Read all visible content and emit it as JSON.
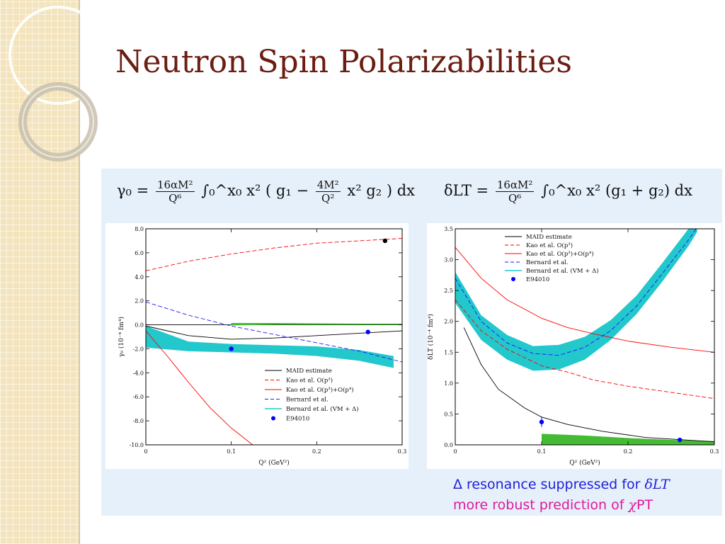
{
  "slide": {
    "title": "Neutron Spin Polarizabilities"
  },
  "formulas": {
    "left": {
      "lhs": "γ₀ =",
      "num": "16αM²",
      "den": "Q⁶",
      "body": "∫₀^x₀ x² ( g₁ −",
      "num2": "4M²",
      "den2": "Q²",
      "tail": "x² g₂ ) dx"
    },
    "right": {
      "lhs": "δLT =",
      "num": "16αM²",
      "den": "Q⁶",
      "body": "∫₀^x₀ x² (g₁ + g₂) dx"
    }
  },
  "notes": {
    "line1_text": "Δ resonance suppressed for ",
    "line1_symbol": "δLT",
    "line2_text": "more robust prediction of ",
    "line2_symbol": "χ",
    "line2_tail": "PT"
  },
  "colors": {
    "maid": "#000000",
    "kao_p3": "#ff0000",
    "kao_p3p4": "#ff0000",
    "bernard": "#1a1aff",
    "bernard_vm": "#22c8cc",
    "e94010": "#0000ff",
    "green_band": "#44bb33",
    "title": "#6b1d12"
  },
  "chart_data": [
    {
      "type": "line",
      "xlabel": "Q² (GeV²)",
      "ylabel": "γ₀ (10⁻⁴ fm⁴)",
      "xlim": [
        0,
        0.3
      ],
      "ylim": [
        -10,
        8
      ],
      "xticks": [
        "0",
        "0.1",
        "0.2",
        "0.3"
      ],
      "yticks": [
        "8.0",
        "6.0",
        "4.0",
        "2.0",
        "0.0",
        "-2.0",
        "-4.0",
        "-6.0",
        "-8.0",
        "-10.0"
      ],
      "legend_position": "bottom-right",
      "legend": [
        {
          "label": "MAID estimate",
          "style": "solid",
          "color": "#000000"
        },
        {
          "label": "Kao et al. O(p³)",
          "style": "dashed",
          "color": "#ff0000"
        },
        {
          "label": "Kao et al. O(p³)+O(p⁴)",
          "style": "solid",
          "color": "#ff0000"
        },
        {
          "label": "Bernard et al.",
          "style": "dashed",
          "color": "#1a1aff"
        },
        {
          "label": "Bernard et al. (VM + Δ)",
          "style": "band",
          "color": "#22c8cc"
        },
        {
          "label": "E94010",
          "style": "marker",
          "color": "#0000ff"
        }
      ],
      "series": [
        {
          "name": "MAID estimate",
          "x": [
            0.0,
            0.05,
            0.1,
            0.15,
            0.2,
            0.25,
            0.3
          ],
          "y": [
            -0.1,
            -0.9,
            -1.2,
            -1.1,
            -0.9,
            -0.7,
            -0.5
          ]
        },
        {
          "name": "Kao et al. O(p³)",
          "x": [
            0.0,
            0.05,
            0.1,
            0.15,
            0.2,
            0.25,
            0.3
          ],
          "y": [
            4.5,
            5.3,
            5.9,
            6.4,
            6.8,
            7.0,
            7.2
          ]
        },
        {
          "name": "Kao et al. O(p³)+O(p⁴)",
          "x": [
            0.0,
            0.025,
            0.05,
            0.075,
            0.1,
            0.125
          ],
          "y": [
            -0.5,
            -2.6,
            -4.8,
            -6.9,
            -8.6,
            -10.0
          ]
        },
        {
          "name": "Bernard et al.",
          "x": [
            0.0,
            0.05,
            0.1,
            0.15,
            0.2,
            0.25,
            0.3
          ],
          "y": [
            1.9,
            0.8,
            -0.1,
            -0.8,
            -1.5,
            -2.2,
            -3.1
          ]
        },
        {
          "name": "Bernard et al. (VM + Δ)",
          "x": [
            0.0,
            0.05,
            0.1,
            0.15,
            0.2,
            0.25,
            0.29
          ],
          "y_low": [
            -1.9,
            -2.2,
            -2.3,
            -2.4,
            -2.6,
            -3.0,
            -3.6
          ],
          "y_high": [
            -0.1,
            -1.4,
            -1.6,
            -1.7,
            -1.8,
            -2.1,
            -2.6
          ]
        },
        {
          "name": "green band",
          "x": [
            0.1,
            0.15,
            0.2,
            0.25,
            0.3
          ],
          "y_low": [
            -0.05,
            0.0,
            0.0,
            0.0,
            0.0
          ],
          "y_high": [
            0.15,
            0.15,
            0.12,
            0.1,
            0.1
          ]
        },
        {
          "name": "E94010",
          "x": [
            0.1,
            0.26
          ],
          "y": [
            -2.0,
            -0.6
          ]
        },
        {
          "name": "black point",
          "x": [
            0.28
          ],
          "y": [
            7.0
          ]
        }
      ]
    },
    {
      "type": "line",
      "xlabel": "Q² (GeV²)",
      "ylabel": "δLT (10⁻⁴ fm⁴)",
      "xlim": [
        0,
        0.3
      ],
      "ylim": [
        0,
        3.5
      ],
      "xticks": [
        "0",
        "0.1",
        "0.2",
        "0.3"
      ],
      "yticks": [
        "3.5",
        "3.0",
        "2.5",
        "2.0",
        "1.5",
        "1.0",
        "0.5",
        "0.0"
      ],
      "legend_position": "top-center",
      "legend": [
        {
          "label": "MAID estimate",
          "style": "solid",
          "color": "#000000"
        },
        {
          "label": "Kao et al. O(p³)",
          "style": "dashed",
          "color": "#ff0000"
        },
        {
          "label": "Kao et al. O(p³)+O(p⁴)",
          "style": "solid",
          "color": "#ff0000"
        },
        {
          "label": "Bernard et al.",
          "style": "dashed",
          "color": "#1a1aff"
        },
        {
          "label": "Bernard et al. (VM + Δ)",
          "style": "band",
          "color": "#22c8cc"
        },
        {
          "label": "E94010",
          "style": "marker",
          "color": "#0000ff"
        }
      ],
      "series": [
        {
          "name": "MAID estimate",
          "x": [
            0.01,
            0.03,
            0.05,
            0.08,
            0.1,
            0.13,
            0.17,
            0.22,
            0.3
          ],
          "y": [
            1.9,
            1.3,
            0.9,
            0.6,
            0.45,
            0.33,
            0.22,
            0.12,
            0.05
          ]
        },
        {
          "name": "Kao et al. O(p³)",
          "x": [
            0.0,
            0.03,
            0.06,
            0.1,
            0.13,
            0.16,
            0.2,
            0.25,
            0.3
          ],
          "y": [
            2.35,
            1.85,
            1.55,
            1.28,
            1.18,
            1.05,
            0.95,
            0.85,
            0.75
          ]
        },
        {
          "name": "Kao et al. O(p³)+O(p⁴)",
          "x": [
            0.0,
            0.03,
            0.06,
            0.1,
            0.13,
            0.16,
            0.2,
            0.25,
            0.3
          ],
          "y": [
            3.2,
            2.7,
            2.35,
            2.05,
            1.9,
            1.8,
            1.68,
            1.58,
            1.5
          ]
        },
        {
          "name": "Bernard et al.",
          "x": [
            0.0,
            0.03,
            0.06,
            0.09,
            0.12,
            0.15,
            0.18,
            0.21,
            0.24,
            0.27,
            0.28
          ],
          "y": [
            2.7,
            2.0,
            1.65,
            1.48,
            1.45,
            1.58,
            1.85,
            2.25,
            2.78,
            3.32,
            3.52
          ]
        },
        {
          "name": "Bernard et al. (VM + Δ)",
          "x": [
            0.0,
            0.03,
            0.06,
            0.09,
            0.12,
            0.15,
            0.18,
            0.21,
            0.24,
            0.27,
            0.28
          ],
          "y_low": [
            2.3,
            1.7,
            1.38,
            1.2,
            1.22,
            1.38,
            1.7,
            2.12,
            2.65,
            3.22,
            3.45
          ],
          "y_high": [
            2.8,
            2.1,
            1.78,
            1.6,
            1.62,
            1.75,
            2.02,
            2.42,
            2.95,
            3.5,
            3.58
          ]
        },
        {
          "name": "green band",
          "x": [
            0.1,
            0.15,
            0.2,
            0.25,
            0.3
          ],
          "y_low": [
            0.0,
            0.0,
            0.0,
            0.0,
            0.0
          ],
          "y_high": [
            0.18,
            0.15,
            0.11,
            0.08,
            0.06
          ]
        },
        {
          "name": "E94010",
          "x": [
            0.1,
            0.26
          ],
          "y": [
            0.37,
            0.08
          ],
          "err": [
            0.08,
            0.02
          ]
        }
      ]
    }
  ]
}
